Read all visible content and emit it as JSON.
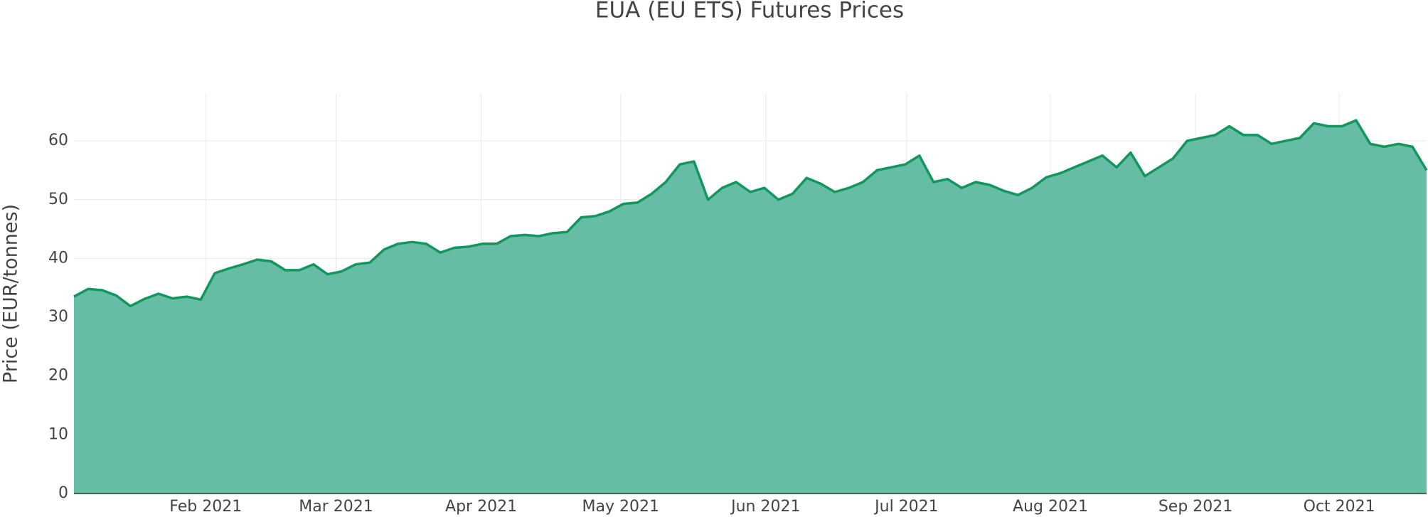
{
  "chart_data": {
    "type": "area",
    "title": "EUA (EU ETS) Futures Prices",
    "ylabel": "Price (EUR/tonnes)",
    "values": [
      33.5,
      34.8,
      34.6,
      33.7,
      31.9,
      33.1,
      34.0,
      33.2,
      33.5,
      33.0,
      37.5,
      38.3,
      39.0,
      39.8,
      39.5,
      38.0,
      38.0,
      39.0,
      37.3,
      37.8,
      39.0,
      39.3,
      41.5,
      42.5,
      42.8,
      42.5,
      41.0,
      41.8,
      42.0,
      42.5,
      42.5,
      43.8,
      44.0,
      43.8,
      44.3,
      44.5,
      47.0,
      47.2,
      48.0,
      49.3,
      49.5,
      51.0,
      53.0,
      56.0,
      56.5,
      50.0,
      52.0,
      53.0,
      51.3,
      52.0,
      50.0,
      51.0,
      53.7,
      52.7,
      51.3,
      52.0,
      53.0,
      55.0,
      55.5,
      56.0,
      57.5,
      53.0,
      53.5,
      52.0,
      53.0,
      52.5,
      51.5,
      50.8,
      52.0,
      53.8,
      54.5,
      55.5,
      56.5,
      57.5,
      55.5,
      58.0,
      54.0,
      55.5,
      57.0,
      60.0,
      60.5,
      61.0,
      62.5,
      61.0,
      61.0,
      59.5,
      60.0,
      60.5,
      63.0,
      62.5,
      62.5,
      63.5,
      59.5,
      59.0,
      59.5,
      59.0,
      55.0
    ],
    "color": "#12965c",
    "fill_color": "#66bda5",
    "xlim": [
      0,
      96
    ],
    "xticks": [
      {
        "value": 9.35,
        "label": "Feb 2021"
      },
      {
        "value": 18.6,
        "label": "Mar 2021"
      },
      {
        "value": 28.9,
        "label": "Apr 2021"
      },
      {
        "value": 38.8,
        "label": "May 2021"
      },
      {
        "value": 49.1,
        "label": "Jun 2021"
      },
      {
        "value": 59.1,
        "label": "Jul 2021"
      },
      {
        "value": 69.3,
        "label": "Aug 2021"
      },
      {
        "value": 79.6,
        "label": "Sep 2021"
      },
      {
        "value": 89.8,
        "label": "Oct 2021"
      }
    ],
    "ylim": [
      0,
      68
    ],
    "yticks": [
      0,
      10,
      20,
      30,
      40,
      50,
      60
    ],
    "grid": true
  }
}
